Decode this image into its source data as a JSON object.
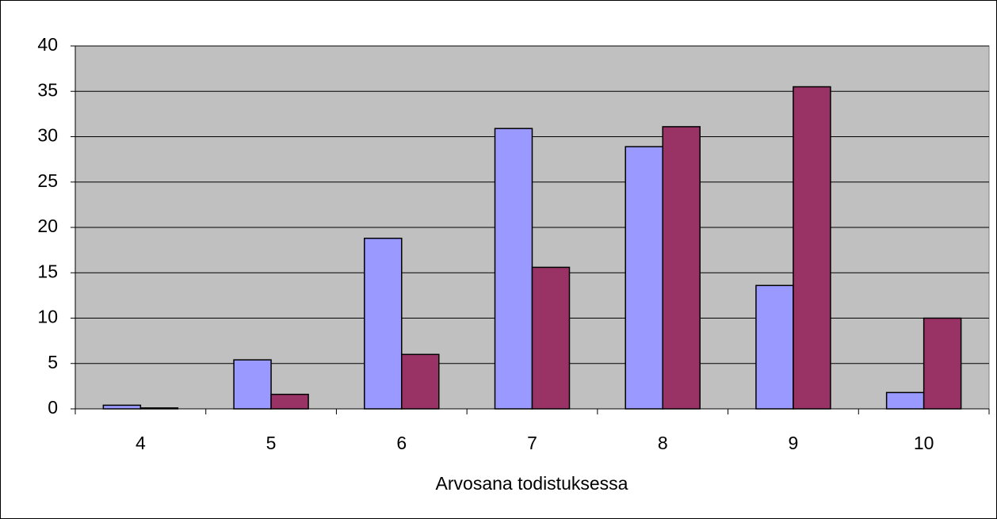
{
  "chart_data": {
    "type": "bar",
    "x_label": "Arvosana todistuksessa",
    "categories": [
      "4",
      "5",
      "6",
      "7",
      "8",
      "9",
      "10"
    ],
    "series": [
      {
        "color": "#9999ff",
        "values": [
          0.4,
          5.4,
          18.8,
          30.9,
          28.9,
          13.6,
          1.8
        ]
      },
      {
        "color": "#993366",
        "values": [
          0.1,
          1.6,
          6.0,
          15.6,
          31.1,
          35.5,
          10.0
        ]
      }
    ],
    "ylim": [
      0,
      40
    ],
    "yticks": [
      0,
      5,
      10,
      15,
      20,
      25,
      30,
      35,
      40
    ],
    "grid": true,
    "plot_background": "#c0c0c0"
  }
}
